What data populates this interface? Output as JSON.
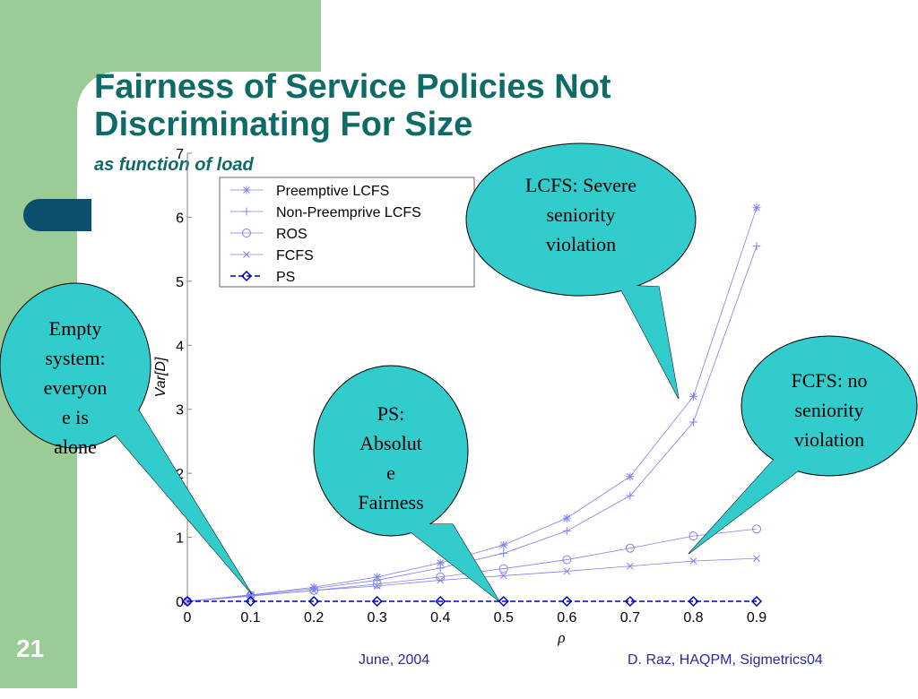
{
  "slide": {
    "title_line1": "Fairness of Service Policies Not",
    "title_line2": "Discriminating For Size",
    "subtitle": "as function of load",
    "number": "21",
    "footer_left": "June, 2004",
    "footer_right": "D. Raz, HAQPM, Sigmetrics04"
  },
  "colors": {
    "sidebar": "#9bcb96",
    "title": "#0f6b67",
    "bubble": "#33cccc",
    "pill": "#0b4f6c",
    "series": "#8080f0",
    "ps": "#0000cc"
  },
  "callouts": [
    {
      "id": "lcfs",
      "lines": [
        "LCFS: Severe",
        "seniority",
        "violation"
      ]
    },
    {
      "id": "fcfs",
      "lines": [
        "FCFS: no",
        "seniority",
        "violation"
      ]
    },
    {
      "id": "ps",
      "lines": [
        "PS:",
        "Absolut",
        "e",
        "Fairness"
      ]
    },
    {
      "id": "empty",
      "lines": [
        "Empty",
        "system:",
        "everyon",
        "e is",
        "alone"
      ]
    }
  ],
  "chart_data": {
    "type": "line",
    "xlabel": "ρ",
    "ylabel": "Var[D]",
    "xlim": [
      0,
      0.9
    ],
    "ylim": [
      0,
      7
    ],
    "xticks": [
      "0",
      "0.1",
      "0.2",
      "0.3",
      "0.4",
      "0.5",
      "0.6",
      "0.7",
      "0.8",
      "0.9"
    ],
    "yticks": [
      "0",
      "1",
      "2",
      "3",
      "4",
      "5",
      "6",
      "7"
    ],
    "x": [
      0,
      0.1,
      0.2,
      0.3,
      0.4,
      0.5,
      0.6,
      0.7,
      0.8,
      0.9
    ],
    "legend_position": "top-left",
    "series": [
      {
        "name": "Preemptive LCFS",
        "marker": "star",
        "values": [
          0,
          0.1,
          0.22,
          0.38,
          0.6,
          0.88,
          1.3,
          1.95,
          3.2,
          6.15
        ]
      },
      {
        "name": "Non-Preemprive LCFS",
        "marker": "plus",
        "values": [
          0,
          0.1,
          0.2,
          0.33,
          0.52,
          0.75,
          1.1,
          1.65,
          2.8,
          5.55
        ]
      },
      {
        "name": "ROS",
        "marker": "circle",
        "values": [
          0,
          0.09,
          0.17,
          0.27,
          0.38,
          0.51,
          0.65,
          0.83,
          1.02,
          1.13
        ]
      },
      {
        "name": "FCFS",
        "marker": "x",
        "values": [
          0,
          0.08,
          0.17,
          0.24,
          0.33,
          0.4,
          0.47,
          0.55,
          0.63,
          0.67
        ]
      },
      {
        "name": "PS",
        "marker": "diamond",
        "values": [
          0,
          0,
          0,
          0,
          0,
          0,
          0,
          0,
          0,
          0
        ]
      }
    ]
  }
}
